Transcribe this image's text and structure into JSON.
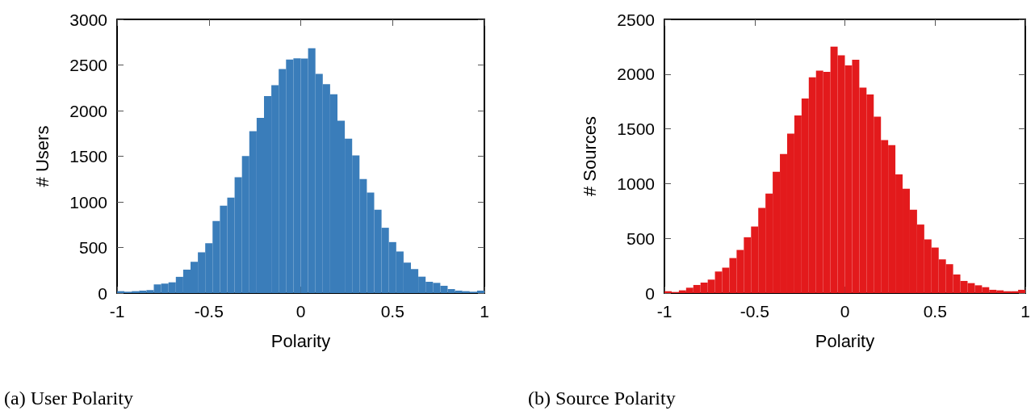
{
  "chart_data": [
    {
      "type": "histogram",
      "title": "(a) User Polarity",
      "xlabel": "Polarity",
      "ylabel": "# Users",
      "color": "#3a7dba",
      "bins": [
        -1,
        -0.96,
        -0.92,
        -0.88,
        -0.84,
        -0.8,
        -0.76,
        -0.72,
        -0.68,
        -0.64,
        -0.6,
        -0.56,
        -0.52,
        -0.48,
        -0.44,
        -0.4,
        -0.36,
        -0.32,
        -0.28,
        -0.24,
        -0.2,
        -0.16,
        -0.12,
        -0.08,
        -0.04,
        0,
        0.04,
        0.08,
        0.12,
        0.16,
        0.2,
        0.24,
        0.28,
        0.32,
        0.36,
        0.4,
        0.44,
        0.48,
        0.52,
        0.56,
        0.6,
        0.64,
        0.68,
        0.72,
        0.76,
        0.8,
        0.84,
        0.88,
        0.92,
        0.96,
        1
      ],
      "values": [
        21,
        15,
        21,
        27,
        33,
        95,
        104,
        118,
        178,
        257,
        343,
        447,
        547,
        790,
        959,
        1047,
        1269,
        1503,
        1775,
        1920,
        2160,
        2278,
        2456,
        2559,
        2574,
        2570,
        2683,
        2402,
        2290,
        2180,
        1890,
        1692,
        1509,
        1249,
        1101,
        914,
        716,
        559,
        456,
        334,
        263,
        180,
        124,
        112,
        80,
        44,
        27,
        21,
        15,
        27
      ],
      "xlim": [
        -1,
        1
      ],
      "ylim": [
        0,
        3000
      ],
      "xticks": [
        -1,
        -0.5,
        0,
        0.5,
        1
      ],
      "yticks": [
        0,
        500,
        1000,
        1500,
        2000,
        2500,
        3000
      ]
    },
    {
      "type": "histogram",
      "title": "(b) Source Polarity",
      "xlabel": "Polarity",
      "ylabel": "# Sources",
      "color": "#e31a1c",
      "bins": [
        -1,
        -0.96,
        -0.92,
        -0.88,
        -0.84,
        -0.8,
        -0.76,
        -0.72,
        -0.68,
        -0.64,
        -0.6,
        -0.56,
        -0.52,
        -0.48,
        -0.44,
        -0.4,
        -0.36,
        -0.32,
        -0.28,
        -0.24,
        -0.2,
        -0.16,
        -0.12,
        -0.08,
        -0.04,
        0,
        0.04,
        0.08,
        0.12,
        0.16,
        0.2,
        0.24,
        0.28,
        0.32,
        0.36,
        0.4,
        0.44,
        0.48,
        0.52,
        0.56,
        0.6,
        0.64,
        0.68,
        0.72,
        0.76,
        0.8,
        0.84,
        0.88,
        0.92,
        0.96,
        1
      ],
      "values": [
        17,
        10,
        25,
        49,
        74,
        96,
        123,
        197,
        232,
        320,
        394,
        510,
        608,
        778,
        909,
        1108,
        1271,
        1456,
        1623,
        1778,
        1970,
        2032,
        2020,
        2251,
        2172,
        2079,
        2131,
        1877,
        1815,
        1611,
        1397,
        1352,
        1084,
        953,
        761,
        626,
        490,
        416,
        308,
        264,
        170,
        111,
        91,
        71,
        54,
        30,
        25,
        17,
        17,
        30
      ],
      "xlim": [
        -1,
        1
      ],
      "ylim": [
        0,
        2500
      ],
      "xticks": [
        -1,
        -0.5,
        0,
        0.5,
        1
      ],
      "yticks": [
        0,
        500,
        1000,
        1500,
        2000,
        2500
      ]
    }
  ]
}
